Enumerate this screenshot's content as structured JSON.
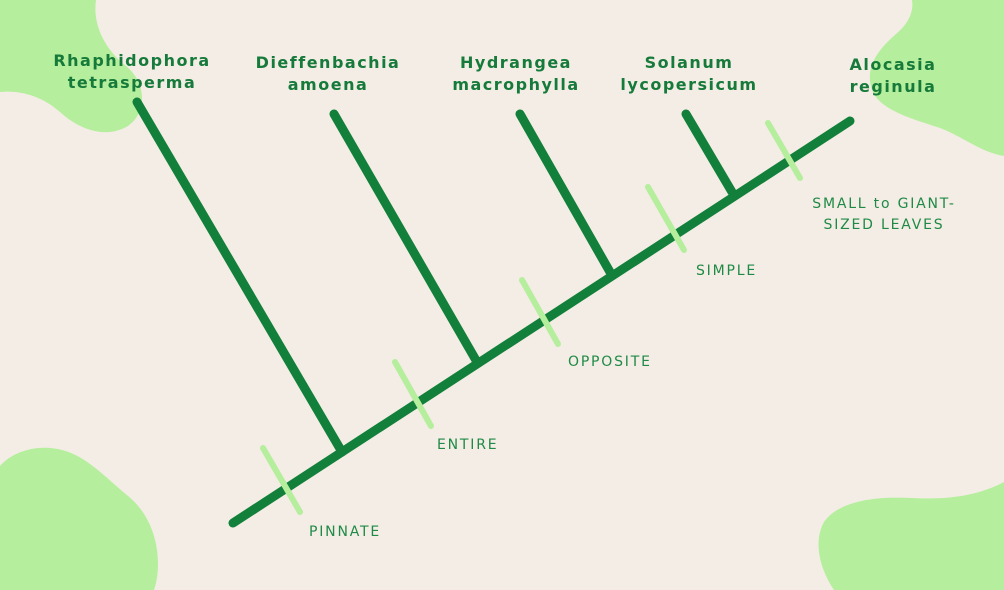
{
  "colors": {
    "background": "#f3ede5",
    "blob": "#b5ee9c",
    "branch": "#12803a",
    "trait_tick": "#b5ee9c",
    "taxon_text": "#157a3a",
    "trait_text": "#1f8a45"
  },
  "taxa": [
    {
      "line1": "Rhaphidophora",
      "line2": "tetrasperma"
    },
    {
      "line1": "Dieffenbachia",
      "line2": "amoena"
    },
    {
      "line1": "Hydrangea",
      "line2": "macrophylla"
    },
    {
      "line1": "Solanum",
      "line2": "lycopersicum"
    },
    {
      "line1": "Alocasia",
      "line2": "reginula"
    }
  ],
  "traits": [
    {
      "lines": [
        "PINNATE"
      ]
    },
    {
      "lines": [
        "ENTIRE"
      ]
    },
    {
      "lines": [
        "OPPOSITE"
      ]
    },
    {
      "lines": [
        "SIMPLE"
      ]
    },
    {
      "lines": [
        "SMALL to GIANT-",
        "SIZED LEAVES"
      ]
    }
  ]
}
